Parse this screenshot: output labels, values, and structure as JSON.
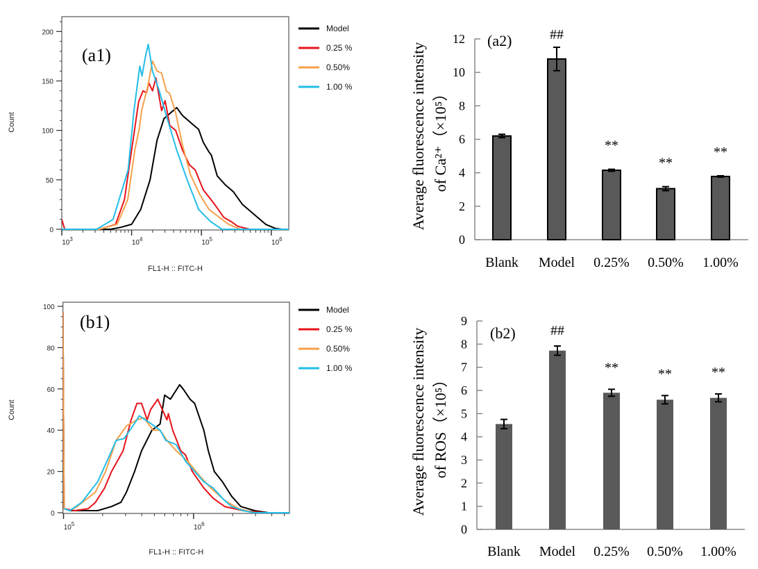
{
  "chart_data": [
    {
      "id": "a1",
      "type": "line",
      "panel_label": "(a1)",
      "xlabel": "FL1-H :: FITC-H",
      "ylabel": "Count",
      "xscale": "log",
      "xlim": [
        1000,
        1780000
      ],
      "ylim": [
        0,
        215
      ],
      "ymajor": [
        0,
        50,
        100,
        150,
        200
      ],
      "yminor_step": 10,
      "xticks": [
        {
          "value": 1000,
          "base": "10",
          "exp": "3"
        },
        {
          "value": 10000,
          "base": "10",
          "exp": "4"
        },
        {
          "value": 100000,
          "base": "10",
          "exp": "5"
        },
        {
          "value": 1000000,
          "base": "10",
          "exp": "6"
        }
      ],
      "legend_position": "right-outside-top",
      "series": [
        {
          "name": "Model",
          "color": "#000000",
          "points": [
            [
              1000,
              0
            ],
            [
              5000,
              0
            ],
            [
              7000,
              2
            ],
            [
              10000,
              5
            ],
            [
              13500,
              20
            ],
            [
              18400,
              50
            ],
            [
              23100,
              90
            ],
            [
              29100,
              112
            ],
            [
              44300,
              123
            ],
            [
              53500,
              115
            ],
            [
              78300,
              105
            ],
            [
              91200,
              101
            ],
            [
              106000,
              88
            ],
            [
              128500,
              78
            ],
            [
              138700,
              75
            ],
            [
              168000,
              54
            ],
            [
              219000,
              45
            ],
            [
              286000,
              38
            ],
            [
              388000,
              25
            ],
            [
              569000,
              15
            ],
            [
              832000,
              5
            ],
            [
              1130000,
              1
            ],
            [
              1420000,
              0
            ],
            [
              1780000,
              0
            ]
          ]
        },
        {
          "name": "0.25 %",
          "color": "#e8121a",
          "points": [
            [
              1000,
              10
            ],
            [
              1100,
              0
            ],
            [
              3460,
              0
            ],
            [
              5900,
              5
            ],
            [
              7900,
              30
            ],
            [
              10000,
              80
            ],
            [
              12600,
              129
            ],
            [
              14600,
              140
            ],
            [
              16300,
              138
            ],
            [
              17700,
              148
            ],
            [
              19900,
              140
            ],
            [
              22300,
              153
            ],
            [
              26900,
              120
            ],
            [
              30200,
              130
            ],
            [
              35200,
              105
            ],
            [
              42800,
              100
            ],
            [
              53500,
              80
            ],
            [
              67600,
              65
            ],
            [
              81300,
              60
            ],
            [
              106000,
              40
            ],
            [
              155000,
              25
            ],
            [
              209000,
              12
            ],
            [
              263000,
              8
            ],
            [
              331000,
              3
            ],
            [
              490000,
              0
            ],
            [
              1780000,
              0
            ]
          ]
        },
        {
          "name": "0.50%",
          "color": "#f5a04a",
          "points": [
            [
              1000,
              0
            ],
            [
              3460,
              0
            ],
            [
              6200,
              5
            ],
            [
              8800,
              30
            ],
            [
              11100,
              80
            ],
            [
              12900,
              102
            ],
            [
              13900,
              120
            ],
            [
              17100,
              145
            ],
            [
              19900,
              170
            ],
            [
              23100,
              160
            ],
            [
              26900,
              158
            ],
            [
              31400,
              140
            ],
            [
              35200,
              137
            ],
            [
              42700,
              118
            ],
            [
              53500,
              85
            ],
            [
              69800,
              55
            ],
            [
              94800,
              35
            ],
            [
              128500,
              20
            ],
            [
              181000,
              12
            ],
            [
              245000,
              5
            ],
            [
              360000,
              0
            ],
            [
              1780000,
              0
            ]
          ]
        },
        {
          "name": "1.00 %",
          "color": "#22bde8",
          "points": [
            [
              1000,
              0
            ],
            [
              3160,
              0
            ],
            [
              5430,
              10
            ],
            [
              8920,
              60
            ],
            [
              10800,
              120
            ],
            [
              13100,
              165
            ],
            [
              14100,
              155
            ],
            [
              15800,
              175
            ],
            [
              17300,
              187
            ],
            [
              19900,
              160
            ],
            [
              24900,
              140
            ],
            [
              31400,
              115
            ],
            [
              44300,
              80
            ],
            [
              62400,
              50
            ],
            [
              91200,
              20
            ],
            [
              134000,
              8
            ],
            [
              196000,
              0
            ],
            [
              1780000,
              0
            ]
          ]
        }
      ]
    },
    {
      "id": "a2",
      "type": "bar",
      "panel_label": "(a2)",
      "ylabel_lines": [
        "Average fluorescence intensity",
        "of Ca²⁺（×10⁵）"
      ],
      "ylim": [
        0,
        12
      ],
      "yticks": [
        0,
        2,
        4,
        6,
        8,
        10,
        12
      ],
      "categories": [
        "Blank",
        "Model",
        "0.25%",
        "0.50%",
        "1.00%"
      ],
      "values": [
        6.2,
        10.8,
        4.15,
        3.05,
        3.78
      ],
      "errors": [
        0.1,
        0.7,
        0.06,
        0.12,
        0.04
      ],
      "annotations": [
        "",
        "##",
        "**",
        "**",
        "**"
      ],
      "bar_color": "#595959",
      "bar_outline": "#000000",
      "axis_color": "#888888"
    },
    {
      "id": "b1",
      "type": "line",
      "panel_label": "(b1)",
      "xlabel": "FL1-H :: FITC-H",
      "ylabel": "Count",
      "xscale": "log",
      "xlim": [
        99000,
        5470000
      ],
      "ylim": [
        0,
        102
      ],
      "ymajor": [
        0,
        20,
        40,
        60,
        80,
        100
      ],
      "yminor_step": 5,
      "xticks": [
        {
          "value": 100000,
          "base": "10",
          "exp": "5"
        },
        {
          "value": 1000000,
          "base": "10",
          "exp": "6"
        }
      ],
      "legend_position": "right-outside-top",
      "series": [
        {
          "name": "Model",
          "color": "#000000",
          "points": [
            [
              99000,
              97
            ],
            [
              101000,
              2
            ],
            [
              112000,
              1
            ],
            [
              183000,
              1
            ],
            [
              234000,
              3
            ],
            [
              276000,
              5
            ],
            [
              305000,
              10
            ],
            [
              352000,
              20
            ],
            [
              398000,
              30
            ],
            [
              479000,
              40
            ],
            [
              553000,
              43
            ],
            [
              600000,
              57
            ],
            [
              664000,
              55
            ],
            [
              782000,
              62
            ],
            [
              832000,
              60
            ],
            [
              940000,
              55
            ],
            [
              1020000,
              53
            ],
            [
              1200000,
              40
            ],
            [
              1300000,
              30
            ],
            [
              1445000,
              20
            ],
            [
              1667000,
              15
            ],
            [
              1963000,
              8
            ],
            [
              2310000,
              3
            ],
            [
              2950000,
              1
            ],
            [
              3770000,
              0
            ],
            [
              5470000,
              0
            ]
          ]
        },
        {
          "name": "0.25 %",
          "color": "#e8121a",
          "points": [
            [
              99000,
              97
            ],
            [
              101000,
              2
            ],
            [
              122000,
              1
            ],
            [
              155000,
              2
            ],
            [
              176000,
              5
            ],
            [
              207000,
              12
            ],
            [
              234000,
              20
            ],
            [
              287000,
              30
            ],
            [
              331000,
              45
            ],
            [
              367000,
              53
            ],
            [
              398000,
              53
            ],
            [
              440000,
              45
            ],
            [
              468000,
              50
            ],
            [
              531000,
              55
            ],
            [
              575000,
              50
            ],
            [
              625000,
              45
            ],
            [
              640000,
              48
            ],
            [
              692000,
              40
            ],
            [
              798000,
              30
            ],
            [
              867000,
              28
            ],
            [
              978000,
              20
            ],
            [
              1200000,
              12
            ],
            [
              1417000,
              7
            ],
            [
              1738000,
              3
            ],
            [
              2400000,
              1
            ],
            [
              3630000,
              0
            ],
            [
              5470000,
              0
            ]
          ]
        },
        {
          "name": "0.50%",
          "color": "#f5a04a",
          "points": [
            [
              99000,
              97
            ],
            [
              101000,
              2
            ],
            [
              112000,
              1
            ],
            [
              127000,
              3
            ],
            [
              176000,
              10
            ],
            [
              211000,
              20
            ],
            [
              254000,
              35
            ],
            [
              305000,
              42
            ],
            [
              367000,
              45
            ],
            [
              415000,
              46
            ],
            [
              489000,
              40
            ],
            [
              553000,
              40
            ],
            [
              625000,
              35
            ],
            [
              736000,
              30
            ],
            [
              902000,
              25
            ],
            [
              1107000,
              18
            ],
            [
              1358000,
              12
            ],
            [
              1738000,
              6
            ],
            [
              2220000,
              2
            ],
            [
              2950000,
              0
            ],
            [
              5470000,
              0
            ]
          ]
        },
        {
          "name": "1.00 %",
          "color": "#22bde8",
          "points": [
            [
              101000,
              2
            ],
            [
              112000,
              1
            ],
            [
              138000,
              5
            ],
            [
              183000,
              15
            ],
            [
              216000,
              25
            ],
            [
              254000,
              35
            ],
            [
              293000,
              36
            ],
            [
              367000,
              45
            ],
            [
              383000,
              47
            ],
            [
              451000,
              44
            ],
            [
              553000,
              40
            ],
            [
              612000,
              35
            ],
            [
              736000,
              33
            ],
            [
              867000,
              25
            ],
            [
              1020000,
              20
            ],
            [
              1200000,
              15
            ],
            [
              1417000,
              12
            ],
            [
              1667000,
              7
            ],
            [
              1963000,
              3
            ],
            [
              2400000,
              1
            ],
            [
              2950000,
              0
            ],
            [
              5470000,
              0
            ]
          ]
        }
      ]
    },
    {
      "id": "b2",
      "type": "bar",
      "panel_label": "(b2)",
      "ylabel_lines": [
        "Average fluorescence intensity",
        "of ROS（×10⁵）"
      ],
      "ylim": [
        0,
        9
      ],
      "yticks": [
        0,
        1,
        2,
        3,
        4,
        5,
        6,
        7,
        8,
        9
      ],
      "categories": [
        "Blank",
        "Model",
        "0.25%",
        "0.50%",
        "1.00%"
      ],
      "values": [
        4.55,
        7.72,
        5.9,
        5.6,
        5.68
      ],
      "errors": [
        0.2,
        0.2,
        0.15,
        0.18,
        0.17
      ],
      "annotations": [
        "",
        "##",
        "**",
        "**",
        "**"
      ],
      "bar_color": "#595959",
      "bar_outline": "",
      "axis_color": "#888888"
    }
  ]
}
